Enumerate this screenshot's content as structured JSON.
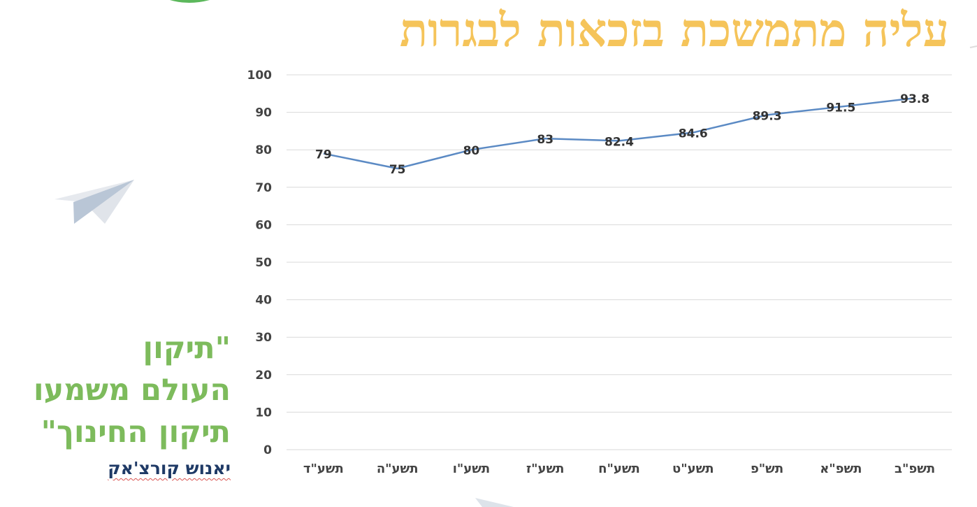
{
  "slide": {
    "title": "עליה מתמשכת בזכאות לבגרות",
    "quote_lines": [
      "\"תיקון",
      "העולם משמעו",
      "תיקון החינוך\""
    ],
    "author": "יאנוש קורצ'אק"
  },
  "colors": {
    "title": "#f5c45a",
    "quote": "#7dbb5c",
    "author": "#1f3a66",
    "line": "#5b8ac4",
    "grid": "#d9d9d9",
    "corner_accent": "#5cb85c"
  },
  "icons": [
    "paper-plane-icon"
  ],
  "chart_data": {
    "type": "line",
    "categories": [
      "תשע\"ד",
      "תשע\"ה",
      "תשע\"ו",
      "תשע\"ז",
      "תשע\"ח",
      "תשע\"ט",
      "תש\"פ",
      "תשפ\"א",
      "תשפ\"ב"
    ],
    "series": [
      {
        "values": [
          79,
          75,
          80,
          83,
          82.4,
          84.6,
          89.3,
          91.5,
          93.8
        ]
      }
    ],
    "ylim": [
      0,
      100
    ],
    "yticks": [
      0,
      10,
      20,
      30,
      40,
      50,
      60,
      70,
      80,
      90,
      100
    ],
    "grid": true,
    "data_labels": true,
    "legend": "none"
  }
}
